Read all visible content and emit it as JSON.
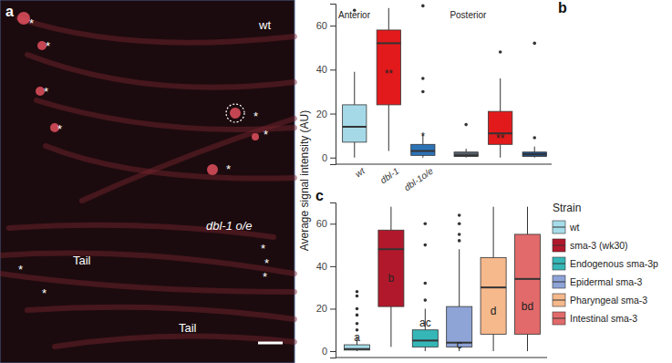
{
  "image_panel": {
    "label": "a",
    "wt": "wt",
    "overexpression": "dbl-1 o/e",
    "tail_upper": "Tail",
    "tail_lower": "Tail",
    "asterisk": "*"
  },
  "chart_data": [
    {
      "type": "box",
      "panel": "b",
      "y_label": "Average signal intensity (AU)",
      "categories": [
        "wt",
        "dbl-1",
        "dbl-1o/e"
      ],
      "ylim": [
        -3,
        70
      ],
      "yticks": [
        0,
        20,
        40,
        60
      ],
      "series": [
        {
          "name": "Anterior",
          "colors": [
            "#a6d9e8",
            "#e31a1c",
            "#2b73b6"
          ],
          "boxes": [
            {
              "min": 0,
              "q1": 7,
              "median": 14,
              "q3": 24,
              "max": 39,
              "outliers": [
                67
              ]
            },
            {
              "min": 3,
              "q1": 24,
              "median": 52,
              "q3": 58,
              "max": 68,
              "outliers": []
            },
            {
              "min": 0,
              "q1": 1,
              "median": 3,
              "q3": 6,
              "max": 11,
              "outliers": [
                30,
                36,
                69
              ]
            }
          ],
          "annotations": [
            null,
            "**",
            "*"
          ]
        },
        {
          "name": "Posterior",
          "colors": [
            "#55606b",
            "#e31a1c",
            "#23538a"
          ],
          "boxes": [
            {
              "min": 0,
              "q1": 0.5,
              "median": 1,
              "q3": 2.5,
              "max": 4,
              "outliers": [
                15
              ]
            },
            {
              "min": 0,
              "q1": 6,
              "median": 11,
              "q3": 21,
              "max": 36,
              "outliers": [
                48
              ]
            },
            {
              "min": 0,
              "q1": 0.5,
              "median": 1.5,
              "q3": 2.5,
              "max": 5,
              "outliers": [
                9,
                52
              ]
            }
          ],
          "annotations": [
            null,
            "**",
            null
          ]
        }
      ]
    },
    {
      "type": "box",
      "panel": "c",
      "legend_title": "Strain",
      "legend": "right",
      "tick_labels": "y",
      "categories": [
        "wt",
        "sma-3 (wk30)",
        "Endogenous sma-3p",
        "Epidermal sma-3",
        "Pharyngeal sma-3",
        "Intestinal sma-3"
      ],
      "colors": [
        "#a6dce9",
        "#b2182b",
        "#35b7b8",
        "#8ea3d6",
        "#f6b98c",
        "#e26a6a"
      ],
      "ylim": [
        -3,
        70
      ],
      "yticks": [
        0,
        20,
        40,
        60
      ],
      "boxes": [
        {
          "min": 0,
          "q1": 0.5,
          "median": 1,
          "q3": 3,
          "max": 7,
          "outliers": [
            10,
            13,
            17,
            20,
            26,
            28
          ]
        },
        {
          "min": 2,
          "q1": 21,
          "median": 48,
          "q3": 57,
          "max": 68,
          "outliers": []
        },
        {
          "min": 0,
          "q1": 2,
          "median": 5,
          "q3": 10,
          "max": 20,
          "outliers": [
            24,
            32,
            50,
            60
          ]
        },
        {
          "min": 0,
          "q1": 2,
          "median": 4,
          "q3": 21,
          "max": 48,
          "outliers": [
            52,
            55,
            60,
            64
          ]
        },
        {
          "min": 0,
          "q1": 8,
          "median": 30,
          "q3": 44,
          "max": 68,
          "outliers": []
        },
        {
          "min": 0,
          "q1": 8,
          "median": 34,
          "q3": 55,
          "max": 68,
          "outliers": []
        }
      ],
      "annotations": [
        "a",
        "b",
        "ac",
        "c",
        "d",
        "bd"
      ]
    }
  ]
}
